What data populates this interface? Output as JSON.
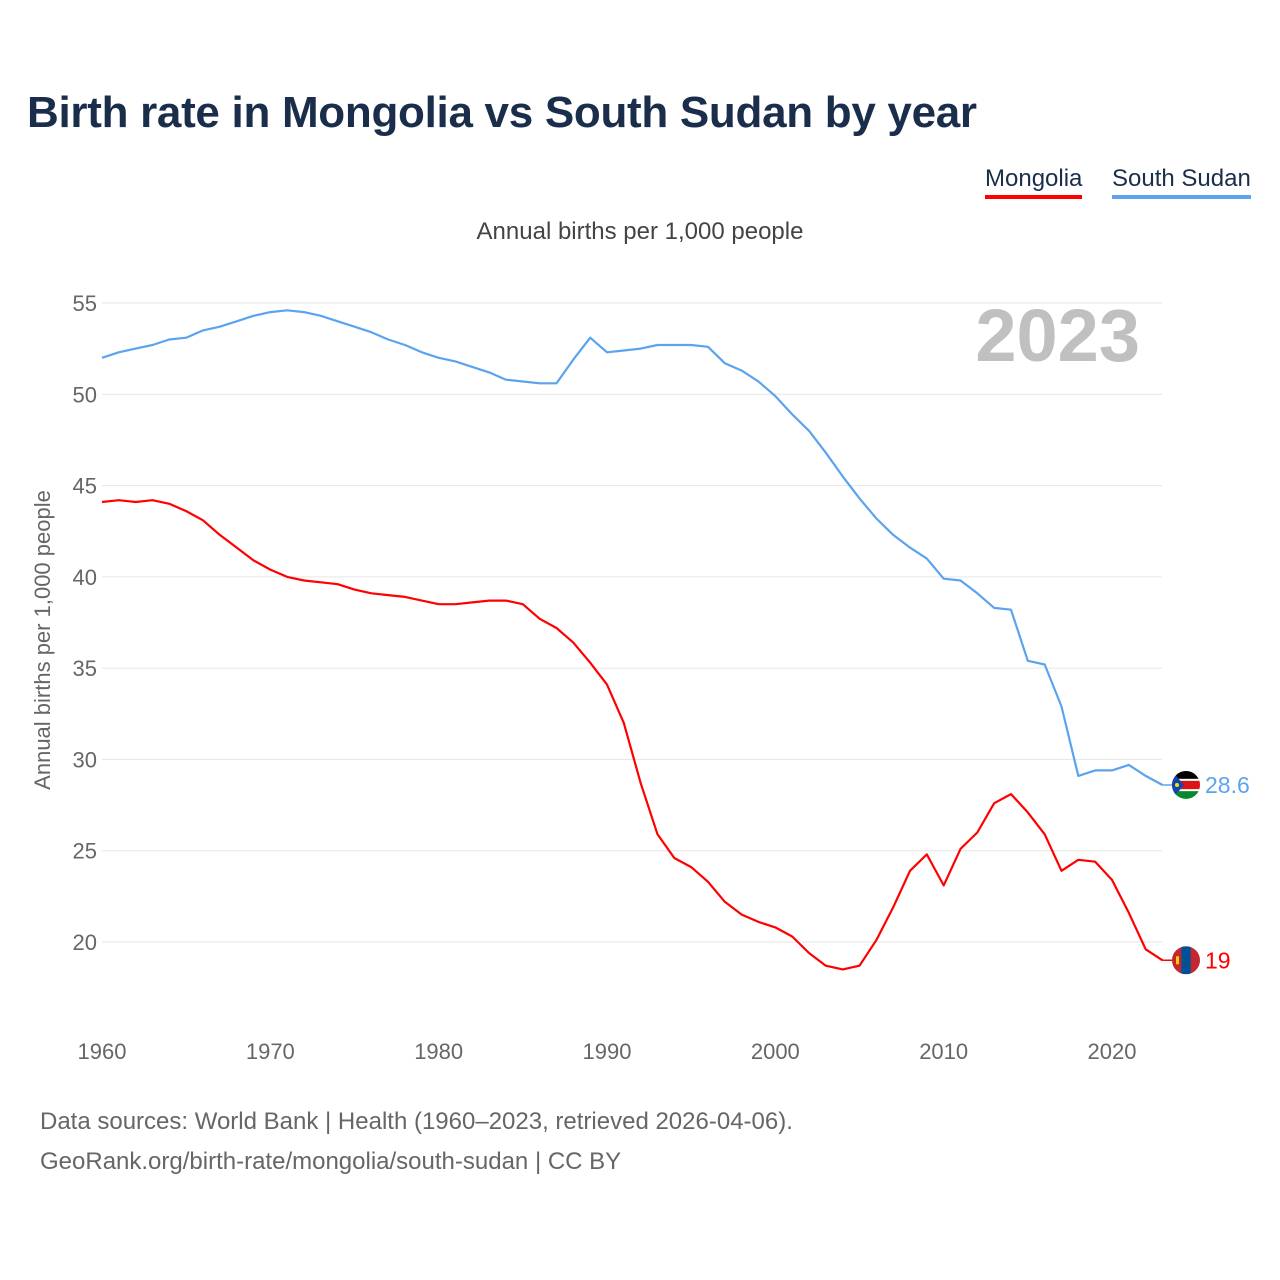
{
  "title": "Birth rate in Mongolia vs South Sudan by year",
  "subtitle": "Annual births per 1,000 people",
  "legend": {
    "mongolia": "Mongolia",
    "south_sudan": "South Sudan"
  },
  "year_watermark": "2023",
  "sources": {
    "line1": "Data sources: World Bank | Health (1960–2023, retrieved 2026-04-06).",
    "line2": "GeoRank.org/birth-rate/mongolia/south-sudan | CC BY"
  },
  "chart_data": {
    "type": "line",
    "title": "Birth rate in Mongolia vs South Sudan by year",
    "xlabel": "",
    "ylabel": "Annual births per 1,000 people",
    "xlim": [
      1960,
      2023
    ],
    "ylim": [
      17,
      56
    ],
    "x_ticks": [
      1960,
      1970,
      1980,
      1990,
      2000,
      2010,
      2020
    ],
    "y_ticks": [
      20,
      25,
      30,
      35,
      40,
      45,
      50,
      55
    ],
    "grid": true,
    "x_start": 1960,
    "series": [
      {
        "name": "Mongolia",
        "color": "#ff0000",
        "end_label": "19",
        "values": [
          44.1,
          44.2,
          44.1,
          44.2,
          44.0,
          43.6,
          43.1,
          42.3,
          41.6,
          40.9,
          40.4,
          40.0,
          39.8,
          39.7,
          39.6,
          39.3,
          39.1,
          39.0,
          38.9,
          38.7,
          38.5,
          38.5,
          38.6,
          38.7,
          38.7,
          38.5,
          37.7,
          37.2,
          36.4,
          35.3,
          34.1,
          32.0,
          28.7,
          25.9,
          24.6,
          24.1,
          23.3,
          22.2,
          21.5,
          21.1,
          20.8,
          20.3,
          19.4,
          18.7,
          18.5,
          18.7,
          20.1,
          21.9,
          23.9,
          24.8,
          23.1,
          25.1,
          26.0,
          27.6,
          28.1,
          27.1,
          25.9,
          23.9,
          24.5,
          24.4,
          23.4,
          21.6,
          19.6,
          19.0
        ]
      },
      {
        "name": "South Sudan",
        "color": "#5ba3ee",
        "end_label": "28.6",
        "values": [
          52.0,
          52.3,
          52.5,
          52.7,
          53.0,
          53.1,
          53.5,
          53.7,
          54.0,
          54.3,
          54.5,
          54.6,
          54.5,
          54.3,
          54.0,
          53.7,
          53.4,
          53.0,
          52.7,
          52.3,
          52.0,
          51.8,
          51.5,
          51.2,
          50.8,
          50.7,
          50.6,
          50.6,
          51.9,
          53.1,
          52.3,
          52.4,
          52.5,
          52.7,
          52.7,
          52.7,
          52.6,
          51.7,
          51.3,
          50.7,
          49.9,
          48.9,
          48.0,
          46.8,
          45.5,
          44.3,
          43.2,
          42.3,
          41.6,
          41.0,
          39.9,
          39.8,
          39.1,
          38.3,
          38.2,
          35.4,
          35.2,
          32.9,
          29.1,
          29.4,
          29.4,
          29.7,
          29.1,
          28.6
        ]
      }
    ]
  }
}
